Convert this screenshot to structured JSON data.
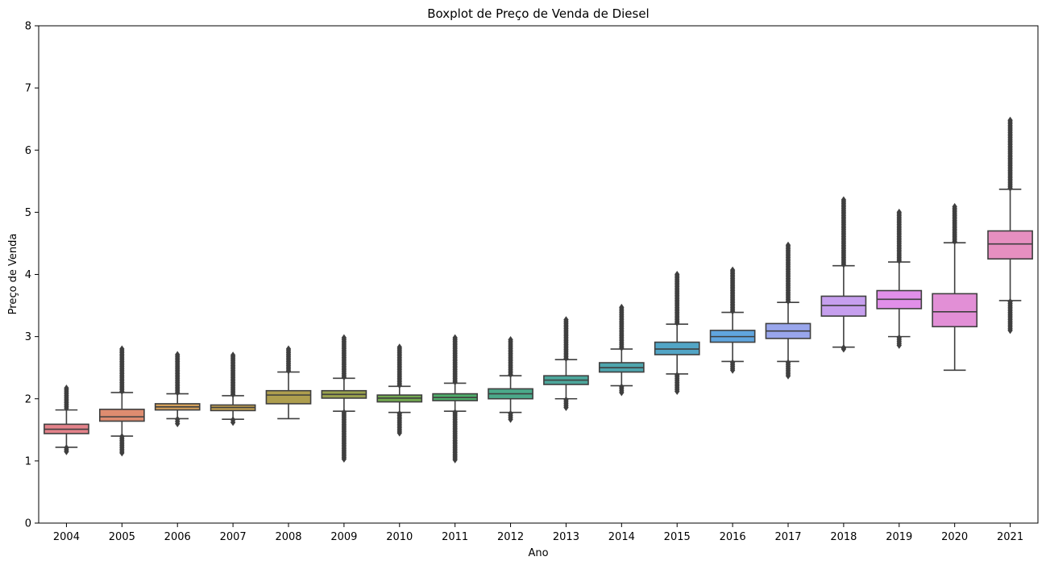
{
  "chart_data": {
    "type": "boxplot",
    "title": "Boxplot de Preço de Venda de Diesel",
    "xlabel": "Ano",
    "ylabel": "Preço de Venda",
    "ylim": [
      0,
      8
    ],
    "yticks": [
      0,
      1,
      2,
      3,
      4,
      5,
      6,
      7,
      8
    ],
    "grid": false,
    "categories": [
      "2004",
      "2005",
      "2006",
      "2007",
      "2008",
      "2009",
      "2010",
      "2011",
      "2012",
      "2013",
      "2014",
      "2015",
      "2016",
      "2017",
      "2018",
      "2019",
      "2020",
      "2021"
    ],
    "boxes": [
      {
        "year": "2004",
        "color": "#e3828a",
        "whislo": 1.22,
        "q1": 1.44,
        "median": 1.51,
        "q3": 1.59,
        "whishi": 1.82,
        "fliers_low": [
          1.15,
          1.21
        ],
        "fliers_high": [
          1.85,
          2.17
        ]
      },
      {
        "year": "2005",
        "color": "#de8c70",
        "whislo": 1.4,
        "q1": 1.64,
        "median": 1.71,
        "q3": 1.83,
        "whishi": 2.1,
        "fliers_low": [
          1.13,
          1.39
        ],
        "fliers_high": [
          2.12,
          2.8
        ]
      },
      {
        "year": "2006",
        "color": "#d39f5a",
        "whislo": 1.68,
        "q1": 1.82,
        "median": 1.87,
        "q3": 1.92,
        "whishi": 2.08,
        "fliers_low": [
          1.6,
          1.67
        ],
        "fliers_high": [
          2.1,
          2.71
        ]
      },
      {
        "year": "2007",
        "color": "#c4a151",
        "whislo": 1.67,
        "q1": 1.81,
        "median": 1.86,
        "q3": 1.9,
        "whishi": 2.05,
        "fliers_low": [
          1.62,
          1.66
        ],
        "fliers_high": [
          2.07,
          2.7
        ]
      },
      {
        "year": "2008",
        "color": "#ae9e4e",
        "whislo": 1.68,
        "q1": 1.92,
        "median": 2.06,
        "q3": 2.13,
        "whishi": 2.43,
        "fliers_low": [],
        "fliers_high": [
          2.45,
          2.8
        ]
      },
      {
        "year": "2009",
        "color": "#9aa24e",
        "whislo": 1.8,
        "q1": 2.01,
        "median": 2.07,
        "q3": 2.13,
        "whishi": 2.33,
        "fliers_low": [
          1.03,
          1.78
        ],
        "fliers_high": [
          2.35,
          2.98
        ]
      },
      {
        "year": "2010",
        "color": "#72a84f",
        "whislo": 1.78,
        "q1": 1.95,
        "median": 2.01,
        "q3": 2.06,
        "whishi": 2.2,
        "fliers_low": [
          1.45,
          1.76
        ],
        "fliers_high": [
          2.22,
          2.83
        ]
      },
      {
        "year": "2011",
        "color": "#4fac6a",
        "whislo": 1.8,
        "q1": 1.97,
        "median": 2.02,
        "q3": 2.08,
        "whishi": 2.25,
        "fliers_low": [
          1.02,
          1.78
        ],
        "fliers_high": [
          2.27,
          2.98
        ]
      },
      {
        "year": "2012",
        "color": "#4ba98a",
        "whislo": 1.78,
        "q1": 2.0,
        "median": 2.08,
        "q3": 2.16,
        "whishi": 2.37,
        "fliers_low": [
          1.67,
          1.76
        ],
        "fliers_high": [
          2.39,
          2.95
        ]
      },
      {
        "year": "2013",
        "color": "#4ca69b",
        "whislo": 2.0,
        "q1": 2.23,
        "median": 2.3,
        "q3": 2.37,
        "whishi": 2.63,
        "fliers_low": [
          1.86,
          1.98
        ],
        "fliers_high": [
          2.65,
          3.27
        ]
      },
      {
        "year": "2014",
        "color": "#4ea5ad",
        "whislo": 2.21,
        "q1": 2.43,
        "median": 2.5,
        "q3": 2.58,
        "whishi": 2.8,
        "fliers_low": [
          2.1,
          2.19
        ],
        "fliers_high": [
          2.82,
          3.47
        ]
      },
      {
        "year": "2015",
        "color": "#52a5c6",
        "whislo": 2.4,
        "q1": 2.71,
        "median": 2.8,
        "q3": 2.91,
        "whishi": 3.2,
        "fliers_low": [
          2.12,
          2.38
        ],
        "fliers_high": [
          3.22,
          4.0
        ]
      },
      {
        "year": "2016",
        "color": "#60a5de",
        "whislo": 2.6,
        "q1": 2.91,
        "median": 3.0,
        "q3": 3.1,
        "whishi": 3.39,
        "fliers_low": [
          2.46,
          2.58
        ],
        "fliers_high": [
          3.41,
          4.07
        ]
      },
      {
        "year": "2017",
        "color": "#99a6ec",
        "whislo": 2.6,
        "q1": 2.97,
        "median": 3.09,
        "q3": 3.21,
        "whishi": 3.55,
        "fliers_low": [
          2.37,
          2.58
        ],
        "fliers_high": [
          3.57,
          4.47
        ]
      },
      {
        "year": "2018",
        "color": "#c69fee",
        "whislo": 2.83,
        "q1": 3.33,
        "median": 3.5,
        "q3": 3.65,
        "whishi": 4.14,
        "fliers_low": [
          2.8,
          2.82
        ],
        "fliers_high": [
          4.16,
          5.2
        ]
      },
      {
        "year": "2019",
        "color": "#e18fe9",
        "whislo": 3.0,
        "q1": 3.45,
        "median": 3.6,
        "q3": 3.74,
        "whishi": 4.2,
        "fliers_low": [
          2.86,
          2.98
        ],
        "fliers_high": [
          4.22,
          5.0
        ]
      },
      {
        "year": "2020",
        "color": "#e28fd6",
        "whislo": 2.46,
        "q1": 3.16,
        "median": 3.4,
        "q3": 3.69,
        "whishi": 4.51,
        "fliers_low": [],
        "fliers_high": [
          4.53,
          5.09
        ]
      },
      {
        "year": "2021",
        "color": "#e68fc0",
        "whislo": 3.58,
        "q1": 4.25,
        "median": 4.49,
        "q3": 4.7,
        "whishi": 5.37,
        "fliers_low": [
          3.1,
          3.56
        ],
        "fliers_high": [
          5.39,
          6.48
        ]
      }
    ]
  }
}
